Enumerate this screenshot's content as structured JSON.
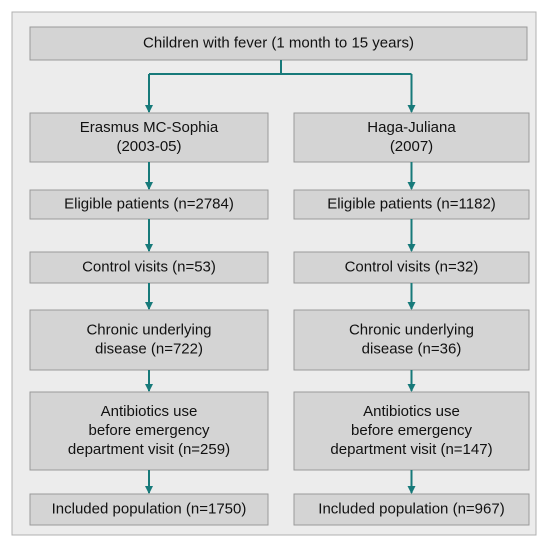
{
  "title": [
    "Children with fever (1 month to 15 years)"
  ],
  "columns": [
    {
      "boxes": [
        [
          "Erasmus MC-Sophia",
          "(2003-05)"
        ],
        [
          "Eligible patients (n=2784)"
        ],
        [
          "Control visits (n=53)"
        ],
        [
          "Chronic underlying",
          "disease (n=722)"
        ],
        [
          "Antibiotics use",
          "before emergency",
          "department visit (n=259)"
        ],
        [
          "Included population (n=1750)"
        ]
      ]
    },
    {
      "boxes": [
        [
          "Haga-Juliana",
          "(2007)"
        ],
        [
          "Eligible patients (n=1182)"
        ],
        [
          "Control visits (n=32)"
        ],
        [
          "Chronic underlying",
          "disease (n=36)"
        ],
        [
          "Antibiotics use",
          "before emergency",
          "department visit (n=147)"
        ],
        [
          "Included population (n=967)"
        ]
      ]
    }
  ]
}
